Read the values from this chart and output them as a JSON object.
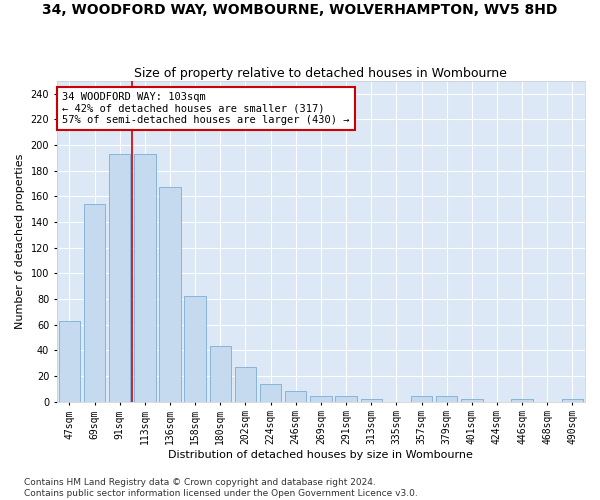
{
  "title": "34, WOODFORD WAY, WOMBOURNE, WOLVERHAMPTON, WV5 8HD",
  "subtitle": "Size of property relative to detached houses in Wombourne",
  "xlabel": "Distribution of detached houses by size in Wombourne",
  "ylabel": "Number of detached properties",
  "categories": [
    "47sqm",
    "69sqm",
    "91sqm",
    "113sqm",
    "136sqm",
    "158sqm",
    "180sqm",
    "202sqm",
    "224sqm",
    "246sqm",
    "269sqm",
    "291sqm",
    "313sqm",
    "335sqm",
    "357sqm",
    "379sqm",
    "401sqm",
    "424sqm",
    "446sqm",
    "468sqm",
    "490sqm"
  ],
  "values": [
    63,
    154,
    193,
    193,
    167,
    82,
    43,
    27,
    14,
    8,
    4,
    4,
    2,
    0,
    4,
    4,
    2,
    0,
    2,
    0,
    2
  ],
  "bar_color": "#c5d9ef",
  "bar_edge_color": "#7aadd4",
  "vline_x": 2.5,
  "vline_color": "#cc0000",
  "annotation_text": "34 WOODFORD WAY: 103sqm\n← 42% of detached houses are smaller (317)\n57% of semi-detached houses are larger (430) →",
  "annotation_box_facecolor": "#ffffff",
  "annotation_box_edgecolor": "#cc0000",
  "ylim": [
    0,
    250
  ],
  "yticks": [
    0,
    20,
    40,
    60,
    80,
    100,
    120,
    140,
    160,
    180,
    200,
    220,
    240
  ],
  "axes_facecolor": "#dce8f5",
  "fig_facecolor": "#ffffff",
  "grid_color": "#ffffff",
  "footer_line1": "Contains HM Land Registry data © Crown copyright and database right 2024.",
  "footer_line2": "Contains public sector information licensed under the Open Government Licence v3.0.",
  "title_fontsize": 10,
  "subtitle_fontsize": 9,
  "xlabel_fontsize": 8,
  "ylabel_fontsize": 8,
  "tick_fontsize": 7,
  "annotation_fontsize": 7.5,
  "footer_fontsize": 6.5
}
